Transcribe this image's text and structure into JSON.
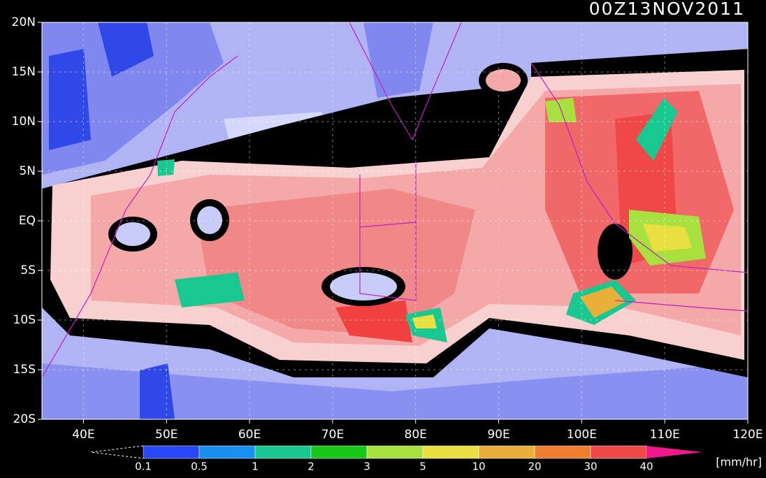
{
  "map": {
    "title": "00Z13NOV2011",
    "lon_range": [
      35,
      120
    ],
    "lat_range": [
      -20,
      20
    ],
    "lat_ticks": [
      {
        "value": 20,
        "label": "20N"
      },
      {
        "value": 15,
        "label": "15N"
      },
      {
        "value": 10,
        "label": "10N"
      },
      {
        "value": 5,
        "label": "5N"
      },
      {
        "value": 0,
        "label": "EQ"
      },
      {
        "value": -5,
        "label": "5S"
      },
      {
        "value": -10,
        "label": "10S"
      },
      {
        "value": -15,
        "label": "15S"
      },
      {
        "value": -20,
        "label": "20S"
      }
    ],
    "lon_ticks": [
      {
        "value": 40,
        "label": "40E"
      },
      {
        "value": 50,
        "label": "50E"
      },
      {
        "value": 60,
        "label": "60E"
      },
      {
        "value": 70,
        "label": "70E"
      },
      {
        "value": 80,
        "label": "80E"
      },
      {
        "value": 90,
        "label": "90E"
      },
      {
        "value": 100,
        "label": "100E"
      },
      {
        "value": 110,
        "label": "110E"
      },
      {
        "value": 120,
        "label": "120E"
      }
    ],
    "colorbar": {
      "unit": "[mm/hr]",
      "levels": [
        0.1,
        0.5,
        1,
        2,
        3,
        5,
        10,
        20,
        30,
        40
      ],
      "colors": [
        "#2848f8",
        "#1890f0",
        "#18c890",
        "#18c818",
        "#a8e040",
        "#e8e040",
        "#e8b038",
        "#f07c30",
        "#f04848"
      ],
      "over_color": "#f0188c"
    }
  }
}
